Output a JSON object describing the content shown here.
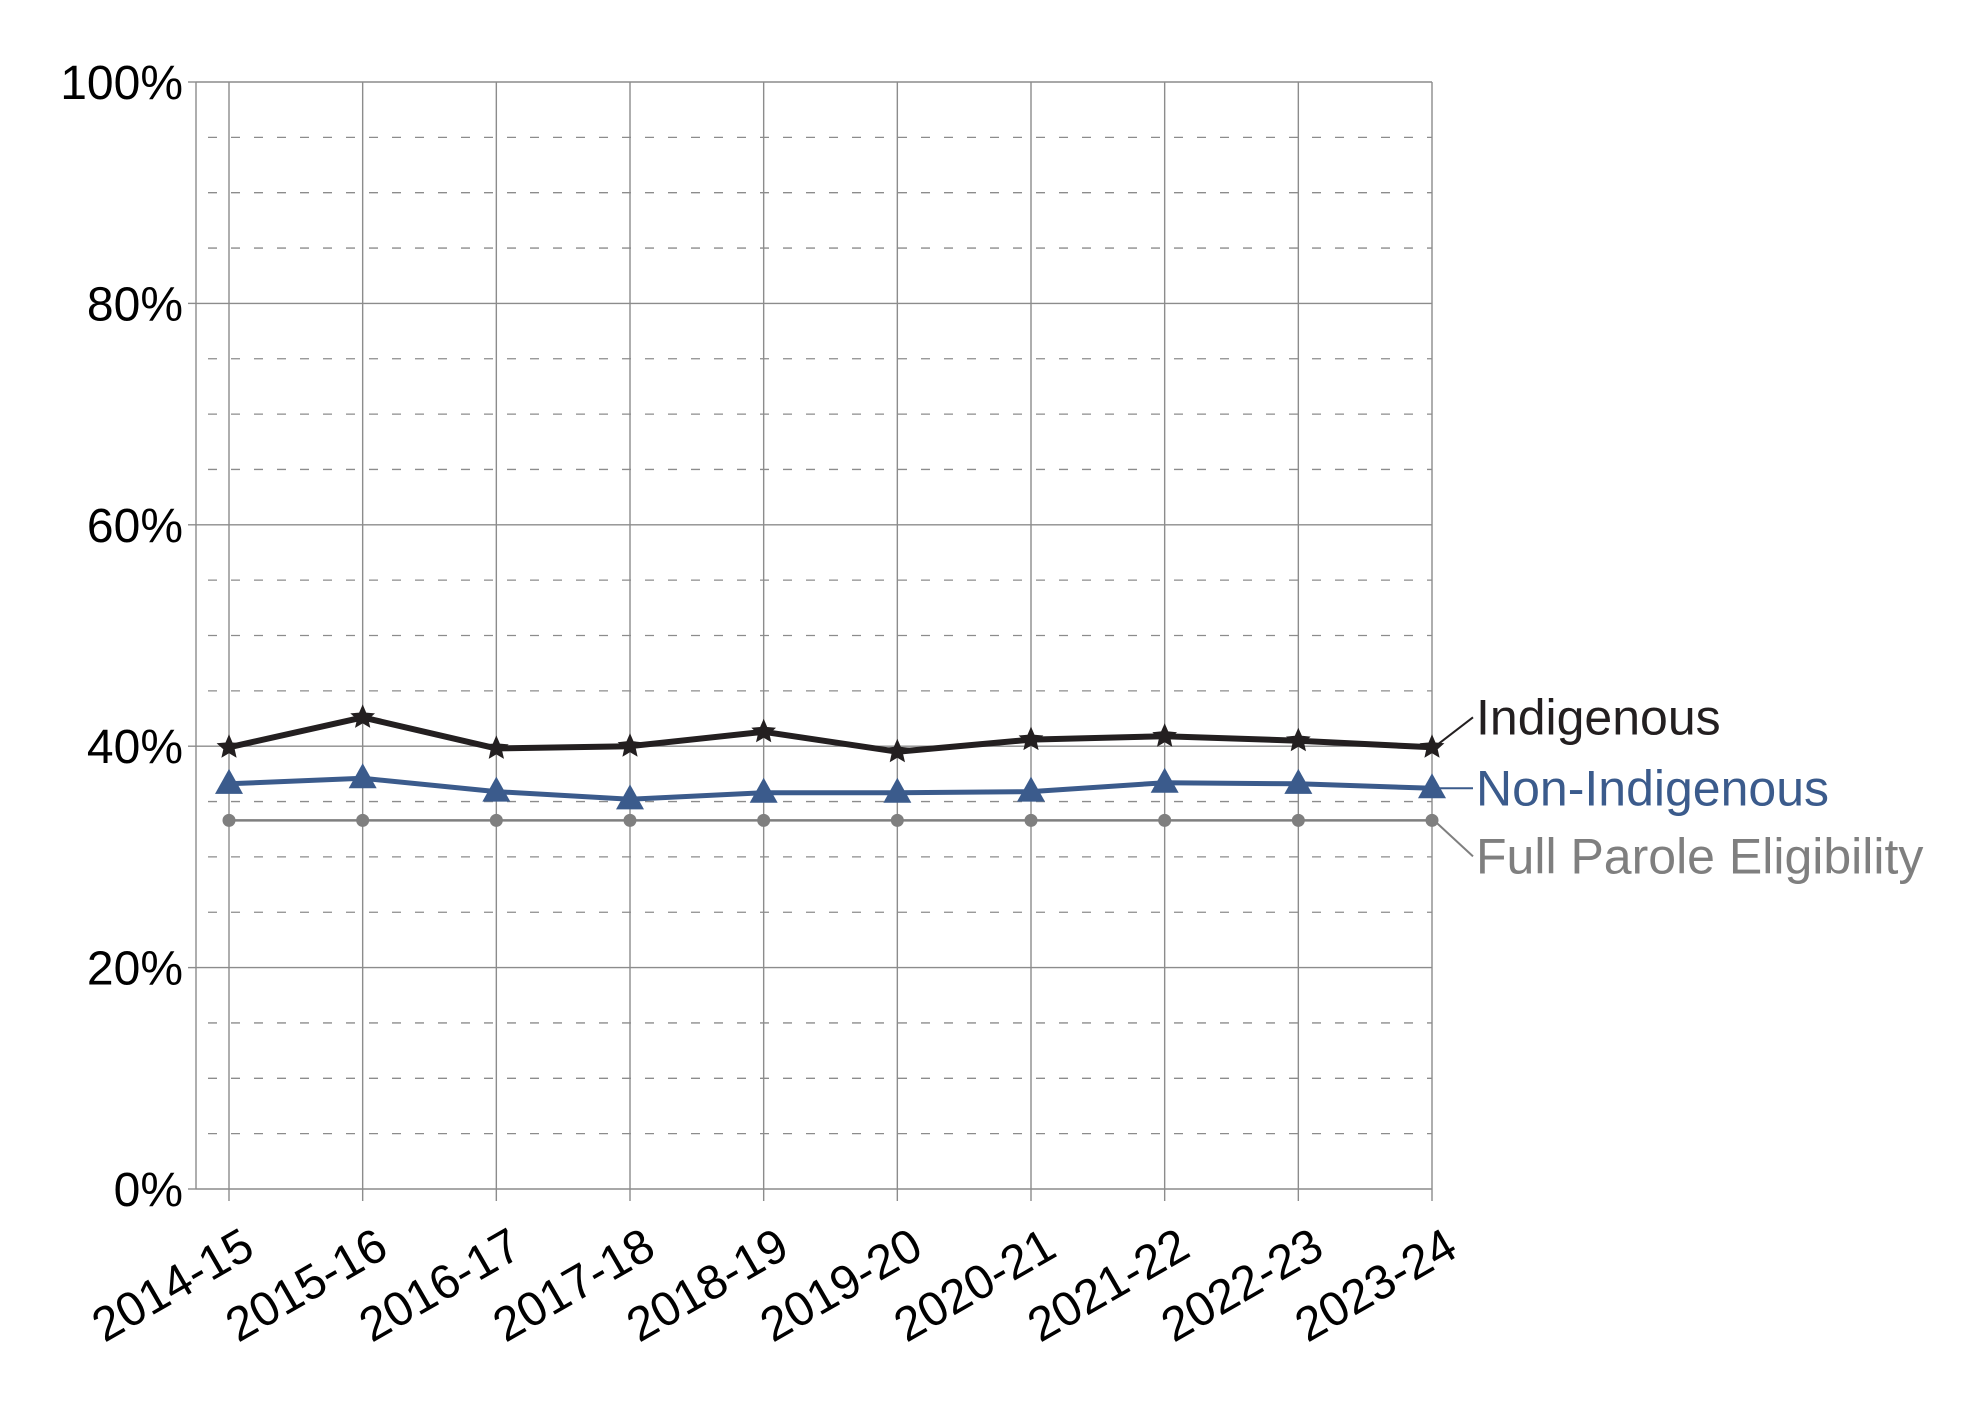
{
  "chart_data": {
    "type": "line",
    "categories": [
      "2014-15",
      "2015-16",
      "2016-17",
      "2017-18",
      "2018-19",
      "2019-20",
      "2020-21",
      "2021-22",
      "2022-23",
      "2023-24"
    ],
    "series": [
      {
        "name": "Indigenous",
        "values": [
          39.9,
          42.6,
          39.8,
          40.0,
          41.3,
          39.5,
          40.6,
          40.9,
          40.5,
          39.9
        ],
        "color": "#231f20",
        "marker": "star"
      },
      {
        "name": "Non-Indigenous",
        "values": [
          36.6,
          37.1,
          35.9,
          35.2,
          35.8,
          35.8,
          35.9,
          36.7,
          36.6,
          36.2
        ],
        "color": "#3b5b8c",
        "marker": "triangle"
      },
      {
        "name": "Full Parole Eligibility",
        "values": [
          33.3,
          33.3,
          33.3,
          33.3,
          33.3,
          33.3,
          33.3,
          33.3,
          33.3,
          33.3
        ],
        "color": "#7f7f7f",
        "marker": "circle"
      }
    ],
    "y_ticks": [
      {
        "value": 0,
        "label": "0%"
      },
      {
        "value": 20,
        "label": "20%"
      },
      {
        "value": 40,
        "label": "40%"
      },
      {
        "value": 60,
        "label": "60%"
      },
      {
        "value": 80,
        "label": "80%"
      },
      {
        "value": 100,
        "label": "100%"
      }
    ],
    "ylim": [
      0,
      100
    ],
    "y_minor_step": 5,
    "grid": true,
    "legend": "right",
    "colors": {
      "grid": "#8c8c8c",
      "text": "#000000"
    }
  }
}
